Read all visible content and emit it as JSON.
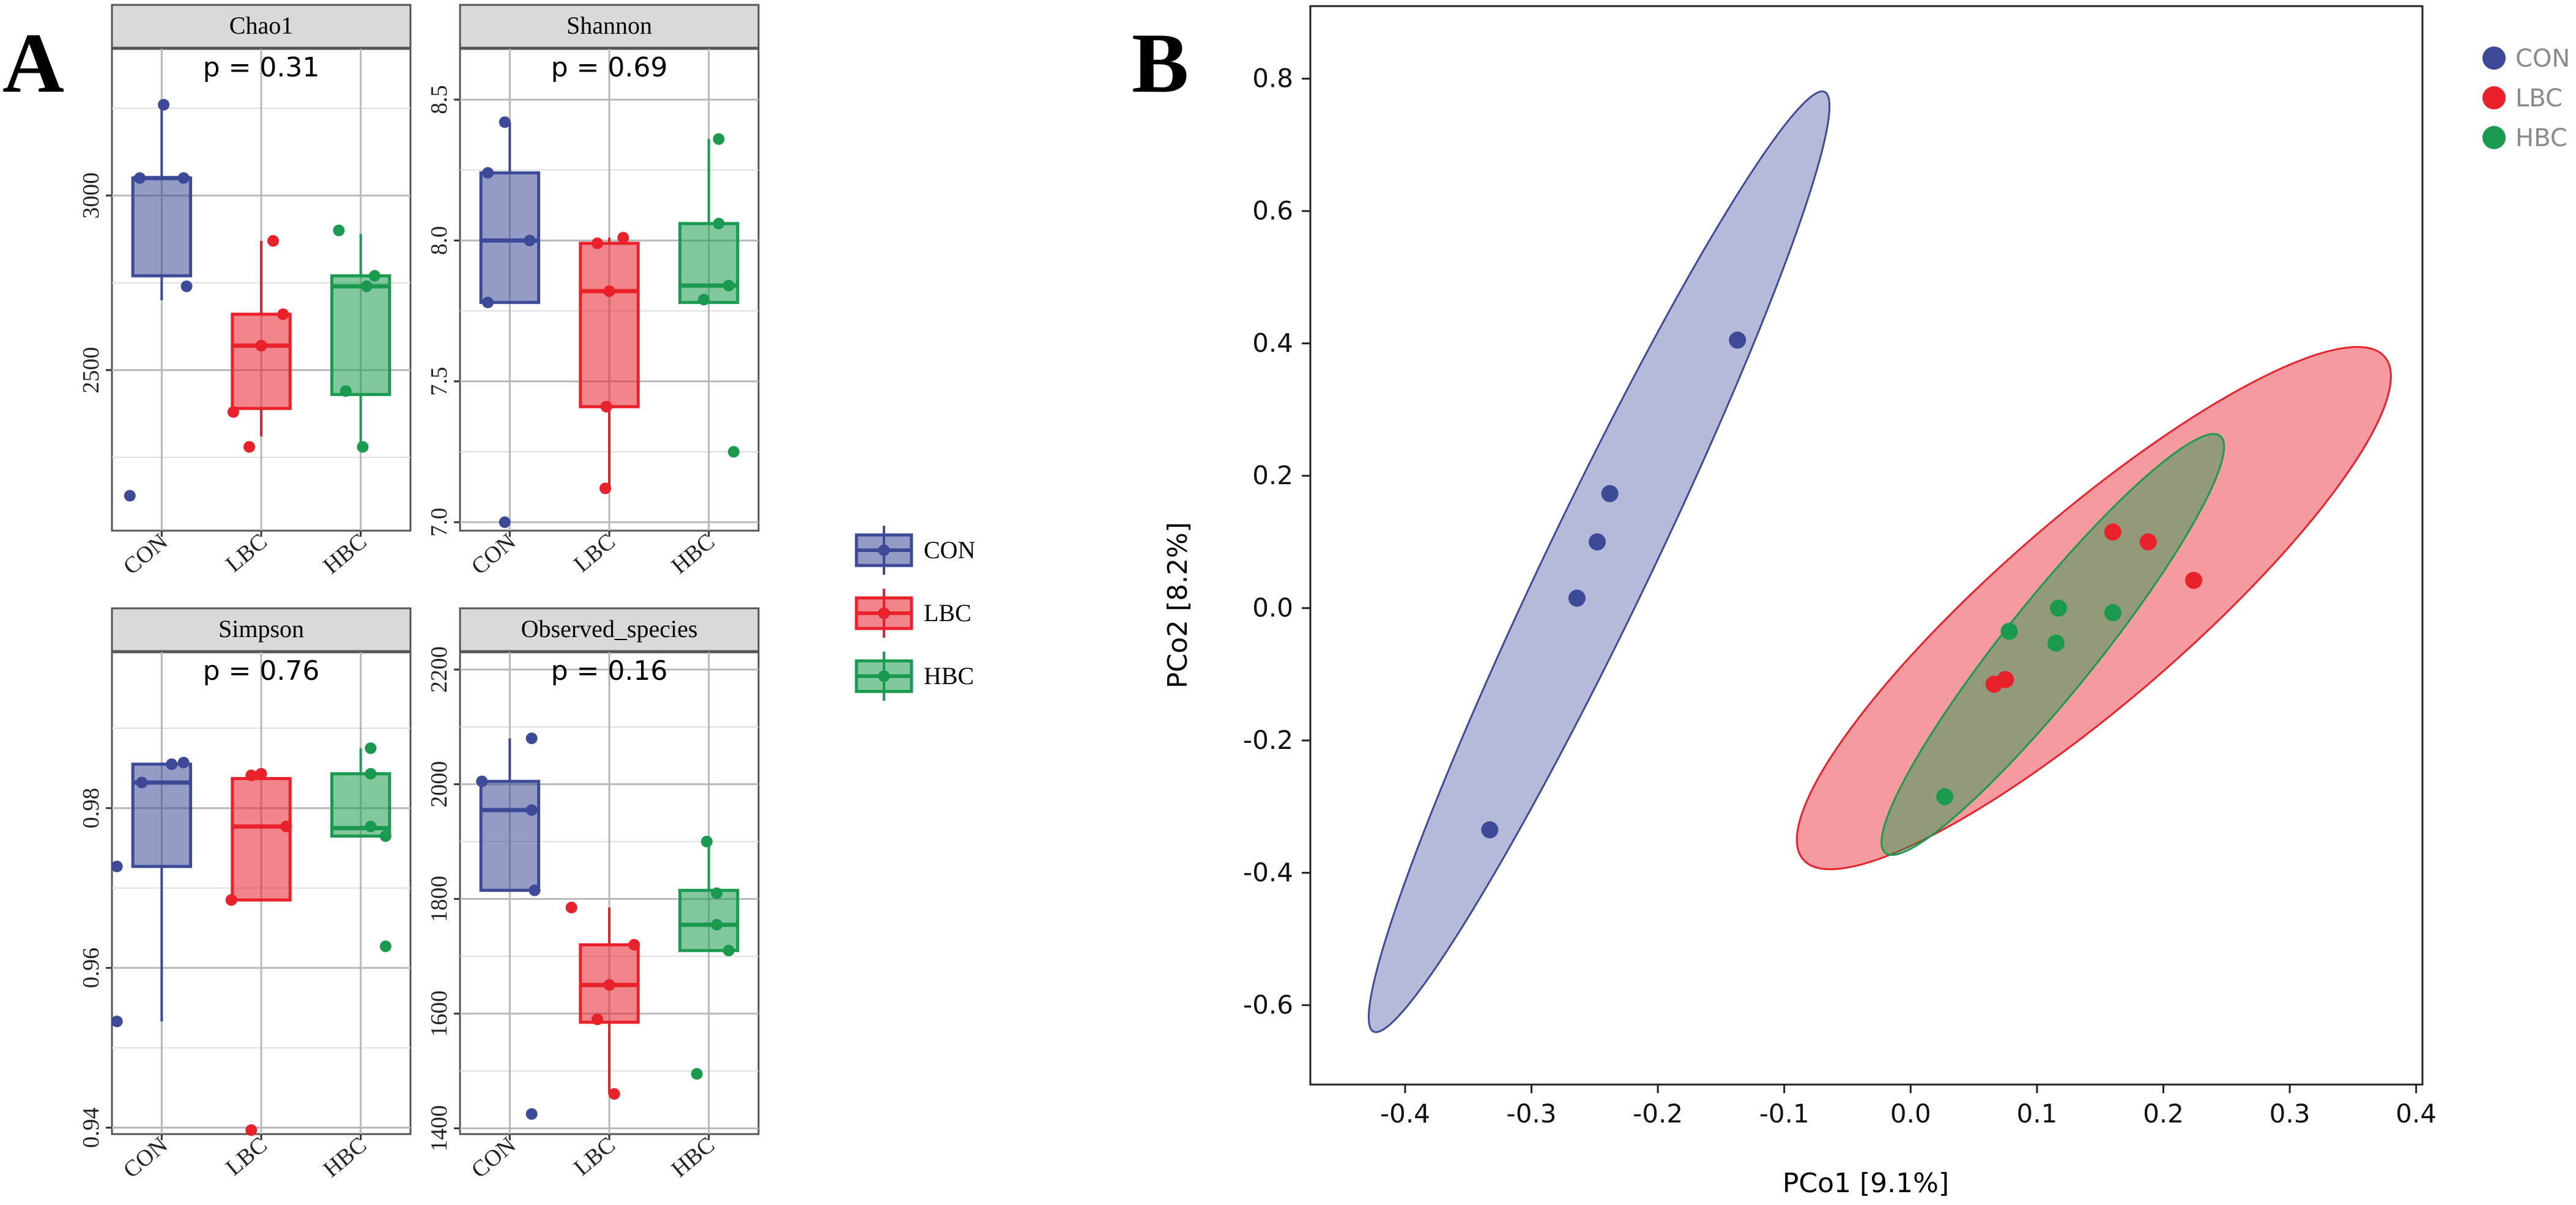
{
  "figure": {
    "panel_a_label": "A",
    "panel_b_label": "B"
  },
  "colors": {
    "CON": "#3c4a98",
    "LBC": "#e8212b",
    "HBC": "#1a9a4e",
    "grid": "#c8c8c8",
    "strip_bg": "#d9d9d9",
    "frame": "#555555"
  },
  "chart_data": [
    {
      "type": "box",
      "title": "Chao1",
      "pvalue_label": "p = 0.31",
      "categories": [
        "CON",
        "LBC",
        "HBC"
      ],
      "ylim": [
        2040,
        3420
      ],
      "yticks": [
        2500,
        3000
      ],
      "boxes": [
        {
          "group": "CON",
          "whisker_low": 2700,
          "q1": 2770,
          "median": 3050,
          "q3": 3050,
          "whisker_high": 3260
        },
        {
          "group": "LBC",
          "whisker_low": 2310,
          "q1": 2390,
          "median": 2570,
          "q3": 2660,
          "whisker_high": 2870
        },
        {
          "group": "HBC",
          "whisker_low": 2280,
          "q1": 2430,
          "median": 2740,
          "q3": 2770,
          "whisker_high": 2890
        }
      ],
      "points": [
        {
          "group": "CON",
          "dx": -0.22,
          "y": 3050
        },
        {
          "group": "CON",
          "dx": 0.02,
          "y": 3260
        },
        {
          "group": "CON",
          "dx": 0.22,
          "y": 3050
        },
        {
          "group": "CON",
          "dx": 0.25,
          "y": 2740
        },
        {
          "group": "CON",
          "dx": -0.32,
          "y": 2140
        },
        {
          "group": "LBC",
          "dx": -0.28,
          "y": 2380
        },
        {
          "group": "LBC",
          "dx": -0.12,
          "y": 2280
        },
        {
          "group": "LBC",
          "dx": 0.0,
          "y": 2570
        },
        {
          "group": "LBC",
          "dx": 0.12,
          "y": 2870
        },
        {
          "group": "LBC",
          "dx": 0.22,
          "y": 2660
        },
        {
          "group": "HBC",
          "dx": -0.22,
          "y": 2900
        },
        {
          "group": "HBC",
          "dx": -0.15,
          "y": 2440
        },
        {
          "group": "HBC",
          "dx": 0.06,
          "y": 2740
        },
        {
          "group": "HBC",
          "dx": 0.14,
          "y": 2770
        },
        {
          "group": "HBC",
          "dx": 0.02,
          "y": 2280
        }
      ]
    },
    {
      "type": "box",
      "title": "Shannon",
      "pvalue_label": "p = 0.69",
      "categories": [
        "CON",
        "LBC",
        "HBC"
      ],
      "ylim": [
        6.97,
        8.68
      ],
      "yticks": [
        7.0,
        7.5,
        8.0,
        8.5
      ],
      "ytick_labels": [
        "7.0",
        "7.5",
        "8.0",
        "8.5"
      ],
      "boxes": [
        {
          "group": "CON",
          "whisker_low": 7.78,
          "q1": 7.78,
          "median": 8.0,
          "q3": 8.24,
          "whisker_high": 8.42
        },
        {
          "group": "LBC",
          "whisker_low": 7.12,
          "q1": 7.41,
          "median": 7.82,
          "q3": 7.99,
          "whisker_high": 8.01
        },
        {
          "group": "HBC",
          "whisker_low": 7.78,
          "q1": 7.78,
          "median": 7.84,
          "q3": 8.06,
          "whisker_high": 8.36
        }
      ],
      "points": [
        {
          "group": "CON",
          "dx": -0.22,
          "y": 8.24
        },
        {
          "group": "CON",
          "dx": -0.05,
          "y": 8.42
        },
        {
          "group": "CON",
          "dx": 0.2,
          "y": 8.0
        },
        {
          "group": "CON",
          "dx": -0.22,
          "y": 7.78
        },
        {
          "group": "CON",
          "dx": -0.05,
          "y": 7.0
        },
        {
          "group": "LBC",
          "dx": -0.12,
          "y": 7.99
        },
        {
          "group": "LBC",
          "dx": 0.14,
          "y": 8.01
        },
        {
          "group": "LBC",
          "dx": 0.0,
          "y": 7.82
        },
        {
          "group": "LBC",
          "dx": -0.03,
          "y": 7.41
        },
        {
          "group": "LBC",
          "dx": -0.04,
          "y": 7.12
        },
        {
          "group": "HBC",
          "dx": 0.1,
          "y": 8.36
        },
        {
          "group": "HBC",
          "dx": 0.1,
          "y": 8.06
        },
        {
          "group": "HBC",
          "dx": 0.2,
          "y": 7.84
        },
        {
          "group": "HBC",
          "dx": -0.05,
          "y": 7.79
        },
        {
          "group": "HBC",
          "dx": 0.25,
          "y": 7.25
        }
      ]
    },
    {
      "type": "box",
      "title": "Simpson",
      "pvalue_label": "p = 0.76",
      "categories": [
        "CON",
        "LBC",
        "HBC"
      ],
      "ylim": [
        0.9392,
        0.9995
      ],
      "yticks": [
        0.94,
        0.96,
        0.98
      ],
      "ytick_labels": [
        "0.94",
        "0.96",
        "0.98"
      ],
      "boxes": [
        {
          "group": "CON",
          "whisker_low": 0.9533,
          "q1": 0.9727,
          "median": 0.9832,
          "q3": 0.9855,
          "whisker_high": 0.9857
        },
        {
          "group": "LBC",
          "whisker_low": 0.9685,
          "q1": 0.9685,
          "median": 0.9777,
          "q3": 0.9837,
          "whisker_high": 0.9843
        },
        {
          "group": "HBC",
          "whisker_low": 0.9765,
          "q1": 0.9765,
          "median": 0.9775,
          "q3": 0.9843,
          "whisker_high": 0.9875
        }
      ],
      "points": [
        {
          "group": "CON",
          "dx": -0.45,
          "y": 0.9727
        },
        {
          "group": "CON",
          "dx": -0.2,
          "y": 0.9832
        },
        {
          "group": "CON",
          "dx": 0.1,
          "y": 0.9855
        },
        {
          "group": "CON",
          "dx": 0.22,
          "y": 0.9857
        },
        {
          "group": "CON",
          "dx": -0.45,
          "y": 0.9533
        },
        {
          "group": "LBC",
          "dx": -0.3,
          "y": 0.9685
        },
        {
          "group": "LBC",
          "dx": 0.0,
          "y": 0.9843
        },
        {
          "group": "LBC",
          "dx": 0.25,
          "y": 0.9777
        },
        {
          "group": "LBC",
          "dx": -0.1,
          "y": 0.9841
        },
        {
          "group": "LBC",
          "dx": -0.1,
          "y": 0.9397
        },
        {
          "group": "HBC",
          "dx": 0.1,
          "y": 0.9875
        },
        {
          "group": "HBC",
          "dx": 0.1,
          "y": 0.9843
        },
        {
          "group": "HBC",
          "dx": 0.1,
          "y": 0.9777
        },
        {
          "group": "HBC",
          "dx": 0.25,
          "y": 0.9765
        },
        {
          "group": "HBC",
          "dx": 0.25,
          "y": 0.9627
        }
      ]
    },
    {
      "type": "box",
      "title": "Observed_species",
      "pvalue_label": "p = 0.16",
      "categories": [
        "CON",
        "LBC",
        "HBC"
      ],
      "ylim": [
        1390,
        2230
      ],
      "yticks": [
        1400,
        1600,
        1800,
        2000,
        2200
      ],
      "boxes": [
        {
          "group": "CON",
          "whisker_low": 1815,
          "q1": 1815,
          "median": 1955,
          "q3": 2005,
          "whisker_high": 2080
        },
        {
          "group": "LBC",
          "whisker_low": 1460,
          "q1": 1585,
          "median": 1650,
          "q3": 1720,
          "whisker_high": 1785
        },
        {
          "group": "HBC",
          "whisker_low": 1710,
          "q1": 1710,
          "median": 1755,
          "q3": 1815,
          "whisker_high": 1895
        }
      ],
      "points": [
        {
          "group": "CON",
          "dx": -0.28,
          "y": 2005
        },
        {
          "group": "CON",
          "dx": 0.22,
          "y": 2080
        },
        {
          "group": "CON",
          "dx": 0.22,
          "y": 1955
        },
        {
          "group": "CON",
          "dx": 0.25,
          "y": 1815
        },
        {
          "group": "CON",
          "dx": 0.22,
          "y": 1425
        },
        {
          "group": "LBC",
          "dx": -0.38,
          "y": 1785
        },
        {
          "group": "LBC",
          "dx": 0.25,
          "y": 1720
        },
        {
          "group": "LBC",
          "dx": 0.0,
          "y": 1650
        },
        {
          "group": "LBC",
          "dx": -0.12,
          "y": 1590
        },
        {
          "group": "LBC",
          "dx": 0.05,
          "y": 1460
        },
        {
          "group": "HBC",
          "dx": -0.02,
          "y": 1900
        },
        {
          "group": "HBC",
          "dx": 0.08,
          "y": 1810
        },
        {
          "group": "HBC",
          "dx": 0.08,
          "y": 1755
        },
        {
          "group": "HBC",
          "dx": 0.2,
          "y": 1710
        },
        {
          "group": "HBC",
          "dx": -0.12,
          "y": 1495
        }
      ]
    },
    {
      "type": "scatter",
      "subtype": "pcoa_with_ellipses",
      "xlabel": "PCo1 [9.1%]",
      "ylabel": "PCo2 [8.2%]",
      "xlim": [
        -0.475,
        0.405
      ],
      "ylim": [
        -0.72,
        0.845
      ],
      "xticks": [
        -0.4,
        -0.3,
        -0.2,
        -0.1,
        0.0,
        0.1,
        0.2,
        0.3,
        0.4
      ],
      "xtick_labels": [
        "-0.4",
        "-0.3",
        "-0.2",
        "-0.1",
        "0.0",
        "0.1",
        "0.2",
        "0.3",
        "0.4"
      ],
      "yticks": [
        -0.6,
        -0.4,
        -0.2,
        0.0,
        0.2,
        0.4,
        0.6,
        0.8
      ],
      "ytick_labels": [
        "-0.6",
        "-0.4",
        "-0.2",
        "0.0",
        "0.2",
        "0.4",
        "0.6",
        "0.8"
      ],
      "series": [
        {
          "name": "CON",
          "points": [
            [
              -0.137,
              0.405
            ],
            [
              -0.238,
              0.173
            ],
            [
              -0.248,
              0.1
            ],
            [
              -0.264,
              0.015
            ],
            [
              -0.333,
              -0.335
            ]
          ]
        },
        {
          "name": "LBC",
          "points": [
            [
              0.16,
              0.115
            ],
            [
              0.188,
              0.1
            ],
            [
              0.224,
              0.042
            ],
            [
              0.075,
              -0.108
            ],
            [
              0.066,
              -0.115
            ]
          ]
        },
        {
          "name": "HBC",
          "points": [
            [
              0.117,
              0.0
            ],
            [
              0.16,
              -0.007
            ],
            [
              0.078,
              -0.035
            ],
            [
              0.115,
              -0.053
            ],
            [
              0.027,
              -0.285
            ]
          ]
        }
      ],
      "ellipses": [
        {
          "name": "CON",
          "vertices": [
            [
              -0.425,
              -0.64
            ],
            [
              -0.068,
              0.78
            ]
          ],
          "minor_tip": [
            -0.207,
            0.092
          ]
        },
        {
          "name": "LBC",
          "vertices": [
            [
              -0.085,
              -0.38
            ],
            [
              0.375,
              0.38
            ]
          ],
          "minor_tip": [
            0.104,
            0.117
          ]
        },
        {
          "name": "HBC",
          "vertices": [
            [
              -0.02,
              -0.37
            ],
            [
              0.245,
              0.26
            ]
          ],
          "minor_tip": [
            0.098,
            0.009
          ]
        }
      ],
      "legend": {
        "placement": "top-right",
        "entries": [
          "CON",
          "LBC",
          "HBC"
        ]
      }
    }
  ]
}
